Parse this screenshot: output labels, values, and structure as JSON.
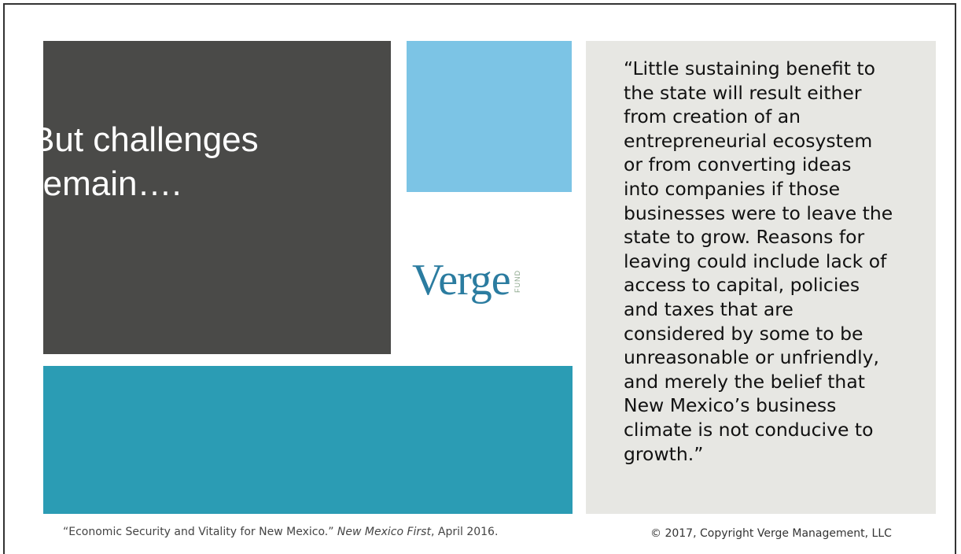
{
  "title": "But challenges remain….",
  "logo": {
    "word": "Verge",
    "sub": "FUND"
  },
  "quote": {
    "lines": [
      "“Little sustaining benefit to",
      "the state will result either",
      "from creation of an",
      "entrepreneurial ecosystem",
      "or from converting ideas",
      "into companies if those",
      "businesses were to leave the",
      "state to grow. Reasons for",
      "leaving could include lack of",
      "access to capital, policies",
      "and taxes that are",
      "considered by some to be",
      "unreasonable or unfriendly,",
      "and merely the belief that",
      "New Mexico’s business",
      "climate is not conducive to",
      "growth.”"
    ]
  },
  "footer": {
    "citation": {
      "before": "“Economic Security and Vitality for New Mexico.” ",
      "source": "New Mexico First",
      "after": ", April 2016."
    },
    "copyright": "© 2017, Copyright Verge Management, LLC"
  }
}
